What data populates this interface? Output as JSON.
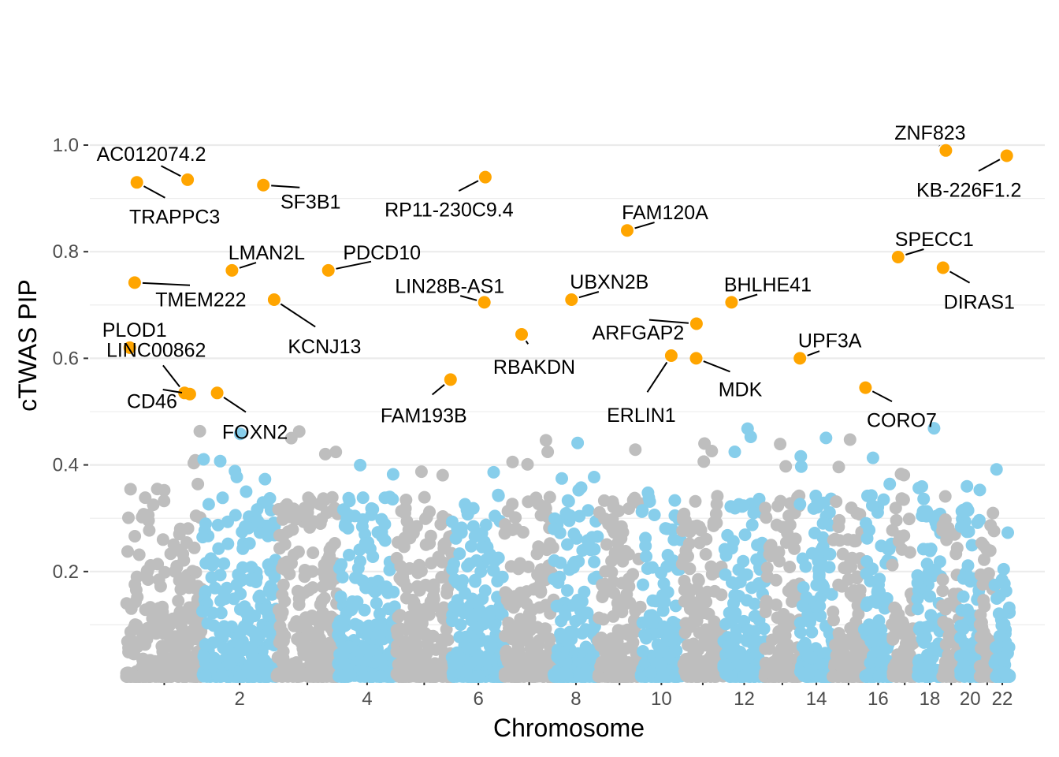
{
  "chart_data": {
    "type": "scatter",
    "xlabel": "Chromosome",
    "ylabel": "cTWAS PIP",
    "ylim": [
      0,
      1.0
    ],
    "y_ticks": [
      0.2,
      0.4,
      0.6,
      0.8,
      1.0
    ],
    "y_tick_labels": [
      "0.2",
      "0.4",
      "0.6",
      "0.8",
      "1.0"
    ],
    "x_tick_labels": [
      "",
      "2",
      "",
      "4",
      "",
      "6",
      "",
      "8",
      "",
      "10",
      "",
      "12",
      "",
      "14",
      "",
      "16",
      "",
      "18",
      "",
      "20",
      "",
      "22"
    ],
    "grid": true,
    "legend": "none",
    "colors": {
      "odd_chromosome": "#BEBEBE",
      "even_chromosome": "#87CEEB",
      "highlighted_gene": "#FFA500",
      "gridline": "#EBEBEB"
    },
    "chromosomes": [
      {
        "chr": 1,
        "start": 0,
        "end": 248
      },
      {
        "chr": 2,
        "start": 248,
        "end": 490
      },
      {
        "chr": 3,
        "start": 490,
        "end": 688
      },
      {
        "chr": 4,
        "start": 688,
        "end": 878
      },
      {
        "chr": 5,
        "start": 878,
        "end": 1059
      },
      {
        "chr": 6,
        "start": 1059,
        "end": 1230
      },
      {
        "chr": 7,
        "start": 1230,
        "end": 1389
      },
      {
        "chr": 8,
        "start": 1389,
        "end": 1534
      },
      {
        "chr": 9,
        "start": 1534,
        "end": 1672
      },
      {
        "chr": 10,
        "start": 1672,
        "end": 1806
      },
      {
        "chr": 11,
        "start": 1806,
        "end": 1941
      },
      {
        "chr": 12,
        "start": 1941,
        "end": 2075
      },
      {
        "chr": 13,
        "start": 2075,
        "end": 2189
      },
      {
        "chr": 14,
        "start": 2189,
        "end": 2296
      },
      {
        "chr": 15,
        "start": 2296,
        "end": 2398
      },
      {
        "chr": 16,
        "start": 2398,
        "end": 2488
      },
      {
        "chr": 17,
        "start": 2488,
        "end": 2571
      },
      {
        "chr": 18,
        "start": 2571,
        "end": 2651
      },
      {
        "chr": 19,
        "start": 2651,
        "end": 2710
      },
      {
        "chr": 20,
        "start": 2710,
        "end": 2774
      },
      {
        "chr": 21,
        "start": 2774,
        "end": 2821
      },
      {
        "chr": 22,
        "start": 2821,
        "end": 2872
      }
    ],
    "highlighted_genes": [
      {
        "gene": "AC012074.2",
        "chr": 1,
        "pos": 200,
        "pip": 0.935
      },
      {
        "gene": "TRAPPC3",
        "chr": 1,
        "pos": 35,
        "pip": 0.93
      },
      {
        "gene": "SF3B1",
        "chr": 2,
        "pos": 198,
        "pip": 0.925
      },
      {
        "gene": "TMEM222",
        "chr": 1,
        "pos": 28,
        "pip": 0.742
      },
      {
        "gene": "PLOD1",
        "chr": 1,
        "pos": 12,
        "pip": 0.62
      },
      {
        "gene": "LINC00862",
        "chr": 1,
        "pos": 190,
        "pip": 0.535
      },
      {
        "gene": "CD46",
        "chr": 1,
        "pos": 207,
        "pip": 0.533
      },
      {
        "gene": "FOXN2",
        "chr": 2,
        "pos": 48,
        "pip": 0.535
      },
      {
        "gene": "LMAN2L",
        "chr": 2,
        "pos": 96,
        "pip": 0.765
      },
      {
        "gene": "KCNJ13",
        "chr": 2,
        "pos": 233,
        "pip": 0.71
      },
      {
        "gene": "PDCD10",
        "chr": 3,
        "pos": 167,
        "pip": 0.765
      },
      {
        "gene": "RP11-230C9.4",
        "chr": 6,
        "pos": 108,
        "pip": 0.94
      },
      {
        "gene": "LIN28B-AS1",
        "chr": 6,
        "pos": 105,
        "pip": 0.705
      },
      {
        "gene": "RBAKDN",
        "chr": 7,
        "pos": 55,
        "pip": 0.645
      },
      {
        "gene": "FAM193B",
        "chr": 5,
        "pos": 176,
        "pip": 0.56
      },
      {
        "gene": "FAM120A",
        "chr": 9,
        "pos": 94,
        "pip": 0.84
      },
      {
        "gene": "UBXN2B",
        "chr": 8,
        "pos": 58,
        "pip": 0.71
      },
      {
        "gene": "ARFGAP2",
        "chr": 11,
        "pos": 47,
        "pip": 0.665
      },
      {
        "gene": "ERLIN1",
        "chr": 10,
        "pos": 99,
        "pip": 0.605
      },
      {
        "gene": "MDK",
        "chr": 11,
        "pos": 46,
        "pip": 0.6
      },
      {
        "gene": "BHLHE41",
        "chr": 12,
        "pos": 26,
        "pip": 0.705
      },
      {
        "gene": "UPF3A",
        "chr": 13,
        "pos": 114,
        "pip": 0.6
      },
      {
        "gene": "ZNF823",
        "chr": 19,
        "pos": 12,
        "pip": 0.99
      },
      {
        "gene": "KB-226F1.2",
        "chr": 22,
        "pos": 40,
        "pip": 0.98
      },
      {
        "gene": "SPECC1",
        "chr": 17,
        "pos": 20,
        "pip": 0.79
      },
      {
        "gene": "DIRAS1",
        "chr": 19,
        "pos": 3,
        "pip": 0.77
      },
      {
        "gene": "CORO7",
        "chr": 16,
        "pos": 4,
        "pip": 0.545
      }
    ],
    "background_genes_note_values": {
      "max_pip_grey": 0.49,
      "max_pip_blue": 0.5
    }
  }
}
